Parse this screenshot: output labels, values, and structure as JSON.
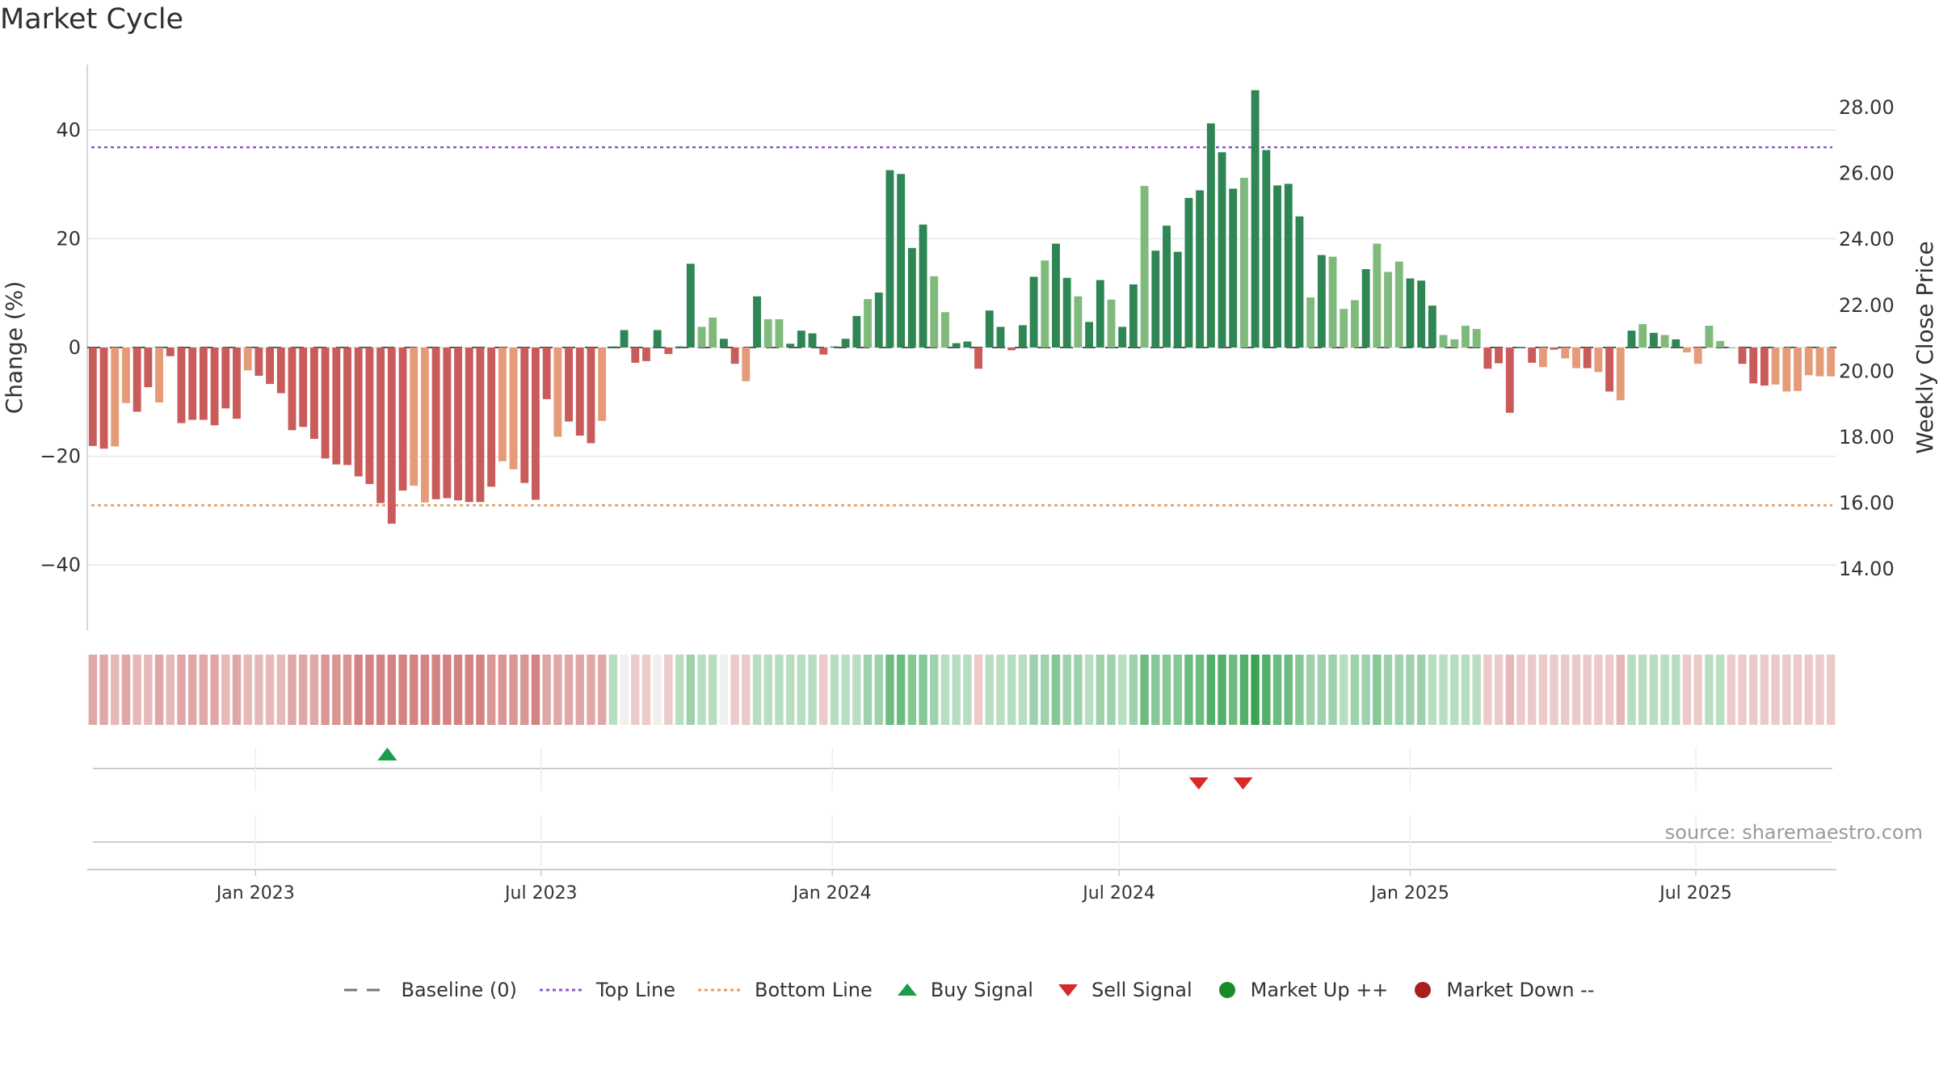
{
  "chart_data": {
    "type": "bar",
    "title": "Market Cycle",
    "ylabel": "Change (%)",
    "y2label": "Weekly Close Price",
    "ylim": [
      -52,
      52
    ],
    "y2lim": [
      12.14,
      29.3
    ],
    "yticks": [
      "40",
      "20",
      "0",
      "−20",
      "−40"
    ],
    "ytick_values": [
      40,
      20,
      0,
      -20,
      -40
    ],
    "y2ticks": [
      "28.00",
      "26.00",
      "24.00",
      "22.00",
      "20.00",
      "18.00",
      "16.00",
      "14.00"
    ],
    "y2tick_values": [
      28,
      26,
      24,
      22,
      20,
      18,
      16,
      14
    ],
    "x_ticks": [
      "Jan 2023",
      "Jul 2023",
      "Jan 2024",
      "Jul 2024",
      "Jan 2025",
      "Jul 2025"
    ],
    "x_tick_week_index": [
      15.2,
      41,
      67.3,
      93.2,
      119.5,
      145.3
    ],
    "grid": true,
    "top_line": 36.8,
    "bottom_line": -29,
    "values": [
      -18.1,
      -18.6,
      -18.2,
      -10.2,
      -11.8,
      -7.3,
      -10.1,
      -1.6,
      -13.9,
      -13.3,
      -13.3,
      -14.3,
      -11.2,
      -13.1,
      -4.2,
      -5.2,
      -6.7,
      -8.4,
      -15.2,
      -14.6,
      -16.8,
      -20.4,
      -21.5,
      -21.6,
      -23.7,
      -25.1,
      -28.6,
      -32.4,
      -26.3,
      -25.4,
      -28.5,
      -27.9,
      -27.7,
      -28.1,
      -28.4,
      -28.4,
      -25.6,
      -20.9,
      -22.4,
      -24.9,
      -28.0,
      -9.5,
      -16.4,
      -13.6,
      -16.2,
      -17.6,
      -13.5,
      0.2,
      3.2,
      -2.8,
      -2.5,
      3.2,
      -1.2,
      0.2,
      15.4,
      3.8,
      5.5,
      1.6,
      -3.0,
      -6.2,
      9.4,
      5.2,
      5.2,
      0.7,
      3.1,
      2.6,
      -1.3,
      0.2,
      1.6,
      5.8,
      8.9,
      10.1,
      32.6,
      31.9,
      18.3,
      22.6,
      13.1,
      6.5,
      0.8,
      1.1,
      -3.9,
      6.8,
      3.8,
      -0.5,
      4.1,
      13.0,
      16.0,
      19.1,
      12.8,
      9.4,
      4.7,
      12.4,
      8.8,
      3.8,
      11.6,
      29.7,
      17.8,
      22.4,
      17.6,
      27.5,
      28.9,
      41.2,
      35.9,
      29.2,
      31.2,
      47.3,
      36.3,
      29.8,
      30.1,
      24.1,
      9.2,
      17.0,
      16.7,
      7.1,
      8.7,
      14.4,
      19.1,
      13.9,
      15.8,
      12.7,
      12.3,
      7.7,
      2.3,
      1.5,
      4.0,
      3.4,
      -3.9,
      -2.9,
      -12.0,
      0.1,
      -2.8,
      -3.6,
      -0.4,
      -2.0,
      -3.8,
      -3.8,
      -4.5,
      -8.1,
      -9.7,
      3.1,
      4.3,
      2.7,
      2.3,
      1.5,
      -0.9,
      -3.0,
      4.0,
      1.2,
      0.0,
      -3.0,
      -6.6,
      -7.0,
      -6.8,
      -8.1,
      -8.0,
      -5.1,
      -5.3,
      -5.3
    ],
    "bar_shades": "ddllddldddddddlddddddddddddddllddddddlldddldddlddddddddllddldlldddddddldddddllddddddddlddlddlddlddddddddldddddldllldllldddlllldddldldlldldldldldllllldddllllllldlddddddlllllddlllllllll",
    "heat_strip_levels": [
      -3,
      -3,
      -2,
      -3,
      -2,
      -2,
      -3,
      -2,
      -3,
      -3,
      -3,
      -3,
      -2,
      -3,
      -2,
      -2,
      -2,
      -2,
      -3,
      -3,
      -3,
      -4,
      -4,
      -4,
      -5,
      -5,
      -5,
      -5,
      -5,
      -5,
      -5,
      -5,
      -5,
      -5,
      -5,
      -5,
      -4,
      -4,
      -4,
      -4,
      -5,
      -3,
      -3,
      -3,
      -3,
      -3,
      -3,
      1,
      0,
      -1,
      -1,
      0,
      -1,
      1,
      2,
      1,
      1,
      0,
      -1,
      -1,
      1,
      1,
      1,
      1,
      1,
      1,
      -1,
      1,
      1,
      1,
      2,
      2,
      4,
      4,
      3,
      3,
      2,
      1,
      1,
      1,
      -1,
      1,
      1,
      1,
      1,
      2,
      2,
      3,
      2,
      2,
      1,
      2,
      2,
      1,
      2,
      4,
      3,
      3,
      3,
      4,
      4,
      5,
      5,
      4,
      5,
      6,
      5,
      4,
      4,
      3,
      2,
      2,
      2,
      1,
      2,
      2,
      3,
      2,
      2,
      2,
      2,
      1,
      1,
      1,
      1,
      1,
      -1,
      -1,
      -2,
      -1,
      -1,
      -1,
      -1,
      -1,
      -1,
      -1,
      -1,
      -1,
      -2,
      1,
      1,
      1,
      1,
      1,
      -1,
      -1,
      1,
      1,
      -1,
      -1,
      -1,
      -1,
      -1,
      -1,
      -1,
      -1,
      -1,
      -1
    ],
    "buy_signals": [
      27.1
    ],
    "sell_signals": [
      100.4,
      104.4
    ],
    "colors": {
      "bar_dark_up": "#2e8654",
      "bar_light_up": "#7fba7c",
      "bar_dark_down": "#c95b5b",
      "bar_light_down": "#e59b77",
      "top_line": "#8a5cc4",
      "bottom_line": "#e59b60",
      "buy": "#1a9e4a",
      "sell": "#d62a2a",
      "market_up": "#1a8a2a",
      "market_down": "#a62020"
    }
  },
  "legend": {
    "baseline": "Baseline (0)",
    "top_line": "Top Line",
    "bottom_line": "Bottom Line",
    "buy_signal": "Buy Signal",
    "sell_signal": "Sell Signal",
    "market_up": "Market Up ++",
    "market_down": "Market Down --"
  },
  "source": "source: sharemaestro.com"
}
